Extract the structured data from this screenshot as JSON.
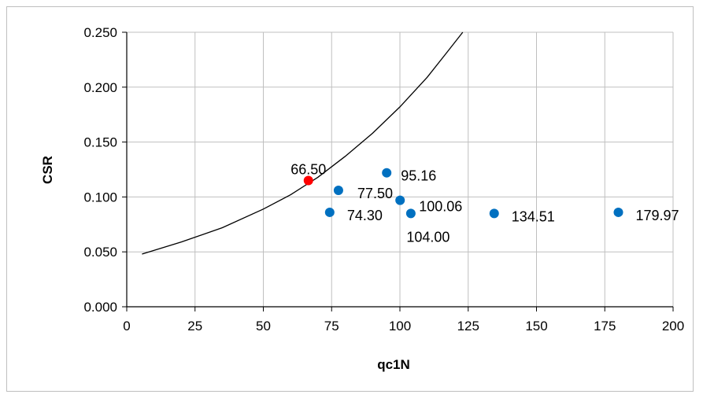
{
  "chart_data": {
    "type": "scatter",
    "title": "",
    "xlabel": "qc1N",
    "ylabel": "CSR",
    "xlim": [
      0,
      200
    ],
    "ylim": [
      0,
      0.25
    ],
    "x_ticks": [
      "0",
      "25",
      "50",
      "75",
      "100",
      "125",
      "150",
      "175",
      "200"
    ],
    "y_ticks": [
      "0.000",
      "0.050",
      "0.100",
      "0.150",
      "0.200",
      "0.250"
    ],
    "grid": true,
    "legend": "none",
    "series": [
      {
        "color": "#ff0000",
        "points": [
          {
            "x": 66.5,
            "y": 0.115,
            "label": "66.50"
          }
        ]
      },
      {
        "color": "#0070c0",
        "points": [
          {
            "x": 74.3,
            "y": 0.086,
            "label": "74.30"
          },
          {
            "x": 77.5,
            "y": 0.106,
            "label": "77.50"
          },
          {
            "x": 95.16,
            "y": 0.122,
            "label": "95.16"
          },
          {
            "x": 100.06,
            "y": 0.097,
            "label": "100.06"
          },
          {
            "x": 104.0,
            "y": 0.085,
            "label": "104.00"
          },
          {
            "x": 134.51,
            "y": 0.085,
            "label": "134.51"
          },
          {
            "x": 179.97,
            "y": 0.086,
            "label": "179.97"
          }
        ]
      }
    ],
    "curve": {
      "color": "#000000",
      "points": [
        [
          5.6,
          0.048
        ],
        [
          20,
          0.059
        ],
        [
          35,
          0.072
        ],
        [
          50,
          0.089
        ],
        [
          60,
          0.102
        ],
        [
          70,
          0.118
        ],
        [
          80,
          0.137
        ],
        [
          90,
          0.158
        ],
        [
          100,
          0.182
        ],
        [
          110,
          0.209
        ],
        [
          117,
          0.231
        ],
        [
          123,
          0.25
        ]
      ]
    }
  }
}
